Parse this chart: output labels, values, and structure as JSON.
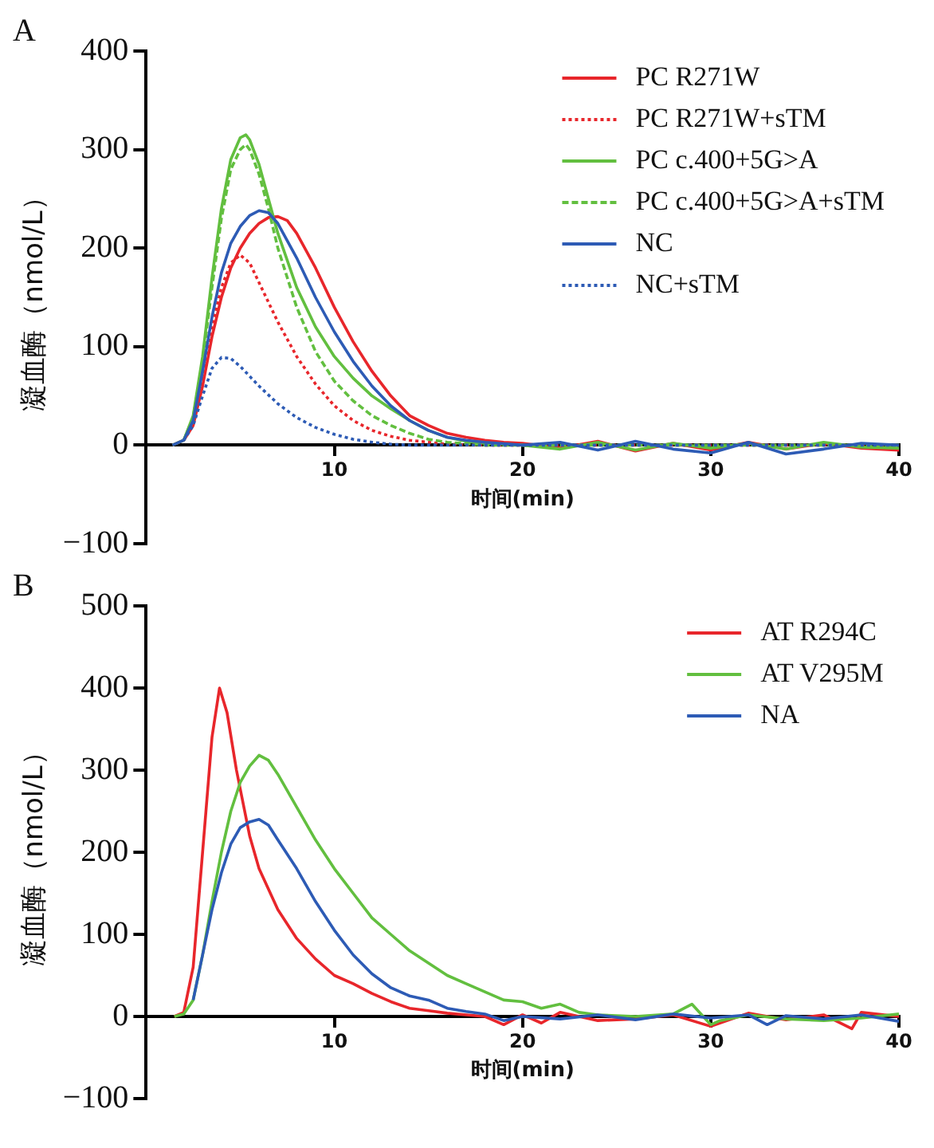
{
  "chart_data": [
    {
      "type": "line",
      "title": "A",
      "xlabel": "时间(min)",
      "ylabel": "凝血酶（nmol/L）",
      "xlim": [
        0,
        40
      ],
      "xticks": [
        10,
        20,
        30,
        40
      ],
      "ylim": [
        -100,
        400
      ],
      "yticks": [
        -100,
        0,
        100,
        200,
        300,
        400
      ],
      "grid": false,
      "legend": "top right",
      "marker": "none",
      "series": [
        {
          "name": "PC R271W",
          "color": "#e8262b",
          "line_style": "solid",
          "x": [
            1.4,
            2,
            2.5,
            3,
            3.5,
            4,
            4.5,
            5,
            5.5,
            6,
            6.5,
            7,
            7.5,
            8,
            9,
            10,
            11,
            12,
            13,
            14,
            15,
            16,
            17,
            18,
            19,
            20,
            22,
            24,
            26,
            28,
            30,
            32,
            34,
            36,
            38,
            40
          ],
          "values": [
            0,
            5,
            20,
            60,
            110,
            150,
            180,
            200,
            215,
            225,
            231,
            232,
            228,
            215,
            180,
            140,
            105,
            75,
            50,
            30,
            20,
            12,
            8,
            5,
            3,
            2,
            -3,
            4,
            -6,
            2,
            -5,
            3,
            -4,
            2,
            -3,
            -5
          ]
        },
        {
          "name": "PC R271W+sTM",
          "color": "#e8262b",
          "line_style": "dotted",
          "x": [
            2,
            2.5,
            3,
            3.5,
            4,
            4.5,
            5,
            5.5,
            6,
            7,
            8,
            9,
            10,
            11,
            12,
            13,
            14,
            15,
            16,
            18,
            20,
            40
          ],
          "values": [
            5,
            25,
            70,
            120,
            160,
            185,
            193,
            185,
            165,
            125,
            90,
            62,
            40,
            25,
            15,
            9,
            5,
            3,
            1,
            0,
            0,
            0
          ]
        },
        {
          "name": "PC c.400+5G>A",
          "color": "#62bf3f",
          "line_style": "solid",
          "x": [
            1.4,
            2,
            2.5,
            3,
            3.5,
            4,
            4.5,
            5,
            5.3,
            5.5,
            6,
            6.5,
            7,
            8,
            9,
            10,
            11,
            12,
            13,
            14,
            15,
            16,
            17,
            18,
            20,
            22,
            24,
            26,
            28,
            30,
            32,
            34,
            36,
            38,
            40
          ],
          "values": [
            0,
            5,
            30,
            90,
            170,
            240,
            290,
            312,
            315,
            310,
            285,
            250,
            215,
            160,
            120,
            90,
            68,
            50,
            37,
            25,
            15,
            8,
            4,
            2,
            0,
            -4,
            3,
            -5,
            2,
            -3,
            2,
            -4,
            3,
            -2,
            -3
          ]
        },
        {
          "name": "PC c.400+5G>A+sTM",
          "color": "#62bf3f",
          "line_style": "dashed",
          "x": [
            2,
            2.5,
            3,
            3.5,
            4,
            4.5,
            5,
            5.3,
            5.5,
            6,
            6.5,
            7,
            8,
            9,
            10,
            11,
            12,
            13,
            14,
            15,
            16,
            18,
            20,
            40
          ],
          "values": [
            5,
            28,
            85,
            160,
            230,
            280,
            300,
            305,
            300,
            275,
            240,
            200,
            140,
            95,
            65,
            45,
            30,
            20,
            12,
            6,
            3,
            0,
            0,
            0
          ]
        },
        {
          "name": "NC",
          "color": "#2d5bb5",
          "line_style": "solid",
          "x": [
            1.4,
            2,
            2.5,
            3,
            3.5,
            4,
            4.5,
            5,
            5.5,
            6,
            6.5,
            7,
            8,
            9,
            10,
            11,
            12,
            13,
            14,
            15,
            16,
            17,
            18,
            20,
            22,
            24,
            26,
            28,
            30,
            32,
            34,
            36,
            38,
            40
          ],
          "values": [
            0,
            5,
            25,
            75,
            130,
            175,
            205,
            222,
            233,
            238,
            236,
            225,
            190,
            150,
            115,
            85,
            60,
            40,
            25,
            15,
            8,
            5,
            3,
            0,
            3,
            -5,
            4,
            -4,
            -8,
            3,
            -9,
            -4,
            2,
            0
          ]
        },
        {
          "name": "NC+sTM",
          "color": "#2d5bb5",
          "line_style": "dotted",
          "x": [
            2,
            2.5,
            3,
            3.5,
            4,
            4.5,
            5,
            6,
            7,
            8,
            9,
            10,
            11,
            12,
            13,
            14,
            40
          ],
          "values": [
            5,
            20,
            50,
            78,
            89,
            88,
            80,
            60,
            42,
            28,
            18,
            11,
            6,
            3,
            1,
            0,
            0
          ]
        }
      ]
    },
    {
      "type": "line",
      "title": "B",
      "xlabel": "时间(min)",
      "ylabel": "凝血酶（nmol/L）",
      "xlim": [
        0,
        40
      ],
      "xticks": [
        10,
        20,
        30,
        40
      ],
      "ylim": [
        -100,
        500
      ],
      "yticks": [
        -100,
        0,
        100,
        200,
        300,
        400,
        500
      ],
      "grid": false,
      "legend": "top right",
      "marker": "none",
      "series": [
        {
          "name": "AT R294C",
          "color": "#e8262b",
          "line_style": "solid",
          "x": [
            1.5,
            2,
            2.5,
            3,
            3.5,
            3.9,
            4.3,
            4.8,
            5.5,
            6,
            7,
            8,
            9,
            10,
            11,
            12,
            13,
            14,
            15,
            16,
            17,
            18,
            19,
            20,
            21,
            22,
            24,
            26,
            28,
            30,
            32,
            34,
            36,
            37.5,
            38,
            40
          ],
          "values": [
            0,
            5,
            60,
            200,
            340,
            400,
            370,
            300,
            220,
            180,
            130,
            95,
            70,
            50,
            40,
            28,
            18,
            10,
            7,
            4,
            2,
            0,
            -10,
            2,
            -8,
            5,
            -5,
            -3,
            2,
            -12,
            4,
            -4,
            2,
            -15,
            5,
            0
          ]
        },
        {
          "name": "AT V295M",
          "color": "#62bf3f",
          "line_style": "solid",
          "x": [
            1.5,
            2,
            2.5,
            3,
            3.5,
            4,
            4.5,
            5,
            5.5,
            6,
            6.5,
            7,
            8,
            9,
            10,
            11,
            12,
            13,
            14,
            15,
            16,
            17,
            18,
            19,
            20,
            21,
            22,
            23,
            24,
            26,
            28,
            29,
            30,
            30.5,
            32,
            34,
            36,
            38,
            40
          ],
          "values": [
            0,
            3,
            20,
            75,
            140,
            200,
            250,
            285,
            305,
            318,
            312,
            295,
            255,
            215,
            180,
            150,
            120,
            100,
            80,
            65,
            50,
            40,
            30,
            20,
            18,
            10,
            15,
            5,
            2,
            0,
            3,
            15,
            -10,
            -5,
            2,
            -3,
            -5,
            -2,
            3
          ]
        },
        {
          "name": "NA",
          "color": "#2d5bb5",
          "line_style": "solid",
          "x": [
            2.5,
            3,
            3.5,
            4,
            4.5,
            5,
            5.5,
            6,
            6.5,
            7,
            8,
            9,
            10,
            11,
            12,
            13,
            14,
            15,
            16,
            17,
            18,
            19,
            20,
            22,
            24,
            26,
            28,
            30,
            32,
            33,
            34,
            36,
            38,
            40
          ],
          "values": [
            20,
            75,
            130,
            175,
            210,
            230,
            237,
            240,
            233,
            215,
            180,
            140,
            105,
            75,
            52,
            35,
            25,
            20,
            10,
            6,
            3,
            -5,
            0,
            -3,
            2,
            -4,
            3,
            -2,
            2,
            -10,
            1,
            -3,
            2,
            -6
          ]
        }
      ]
    }
  ]
}
